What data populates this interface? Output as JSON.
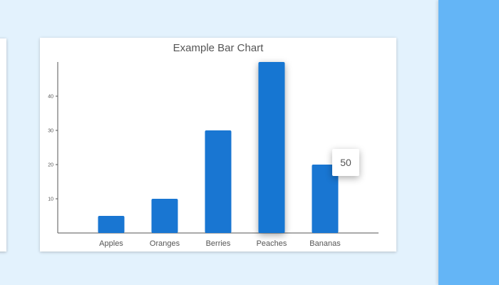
{
  "theme": {
    "page_bg": "#e3f2fd",
    "right_panel_color": "#64b5f6",
    "bar_color": "#1976d2",
    "axis_color": "#555555",
    "text_color": "#555555"
  },
  "tooltip": {
    "value": "50"
  },
  "chart_data": {
    "type": "bar",
    "title": "Example Bar Chart",
    "xlabel": "",
    "ylabel": "",
    "categories": [
      "Apples",
      "Oranges",
      "Berries",
      "Peaches",
      "Bananas"
    ],
    "values": [
      5,
      10,
      30,
      50,
      20
    ],
    "yticks": [
      10,
      20,
      30,
      40
    ],
    "ylim": [
      0,
      50
    ],
    "grid": false,
    "legend": "none",
    "highlighted_category": "Peaches"
  }
}
